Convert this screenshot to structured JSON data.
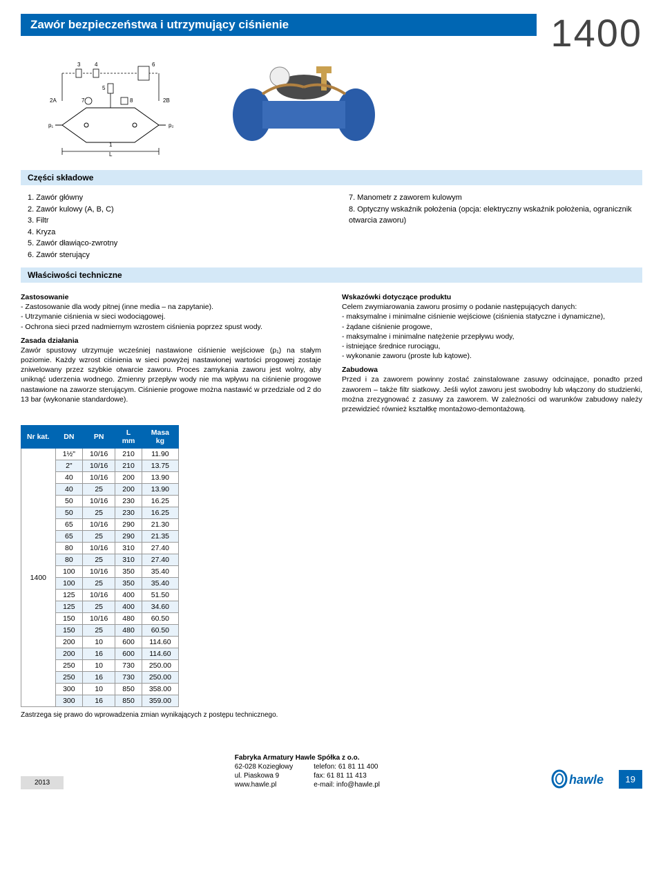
{
  "header": {
    "title": "Zawór bezpieczeństwa i utrzymujący ciśnienie",
    "model": "1400"
  },
  "diagram": {
    "labels": {
      "n3": "3",
      "n4": "4",
      "n5": "5",
      "n6": "6",
      "n7": "7",
      "n8": "8",
      "n1": "1",
      "n2A": "2A",
      "n2B": "2B",
      "p1": "p₁",
      "p2": "p₂",
      "L": "L"
    }
  },
  "parts_header": "Części składowe",
  "parts_left": [
    "1.  Zawór główny",
    "2.  Zawór kulowy (A, B, C)",
    "3.  Filtr",
    "4.  Kryza",
    "5.  Zawór dławiąco-zwrotny",
    "6.  Zawór sterujący"
  ],
  "parts_right": [
    "7.  Manometr z zaworem kulowym",
    "8.  Optyczny wskaźnik położenia (opcja: elektryczny wskaźnik położenia, ogranicznik otwarcia zaworu)"
  ],
  "tech_header": "Właściwości techniczne",
  "left_text": {
    "h1": "Zastosowanie",
    "b1": "- Zastosowanie dla wody pitnej (inne media – na zapytanie).",
    "b2": "- Utrzymanie ciśnienia w sieci wodociągowej.",
    "b3": "- Ochrona sieci przed nadmiernym wzrostem ciśnienia poprzez spust wody.",
    "h2": "Zasada działania",
    "p2": "Zawór spustowy utrzymuje wcześniej nastawione ciśnienie wejściowe (p₁) na stałym poziomie. Każdy wzrost ciśnienia w sieci powyżej nastawionej wartości progowej zostaje zniwelowany przez szybkie otwarcie zaworu. Proces zamykania zaworu jest wolny, aby uniknąć uderzenia wodnego. Zmienny przepływ wody nie ma wpływu na ciśnienie progowe nastawione na zaworze sterującym. Ciśnienie progowe można nastawić w przedziale od 2 do 13 bar (wykonanie standardowe)."
  },
  "right_text": {
    "h1": "Wskazówki dotyczące produktu",
    "p1": "Celem zwymiarowania zaworu prosimy o podanie następujących danych:",
    "b1": "- maksymalne i minimalne ciśnienie wejściowe (ciśnienia statyczne i dynamiczne),",
    "b2": "- żądane ciśnienie progowe,",
    "b3": "- maksymalne i minimalne natężenie przepływu wody,",
    "b4": "- istniejące średnice rurociągu,",
    "b5": "- wykonanie zaworu (proste lub kątowe).",
    "h2": "Zabudowa",
    "p2": "Przed i za zaworem powinny zostać zainstalowane zasuwy odcinające, ponadto przed zaworem – także filtr siatkowy. Jeśli wylot zaworu jest swobodny lub włączony do studzienki, można zrezygnować z zasuwy za zaworem. W zależności od warunków zabudowy należy przewidzieć również kształtkę montażowo-demontażową."
  },
  "table": {
    "headers": [
      "Nr kat.",
      "DN",
      "PN",
      "L mm",
      "Masa kg"
    ],
    "nrkat": "1400",
    "rows": [
      [
        "1½\"",
        "10/16",
        "210",
        "11.90"
      ],
      [
        "2\"",
        "10/16",
        "210",
        "13.75"
      ],
      [
        "40",
        "10/16",
        "200",
        "13.90"
      ],
      [
        "40",
        "25",
        "200",
        "13.90"
      ],
      [
        "50",
        "10/16",
        "230",
        "16.25"
      ],
      [
        "50",
        "25",
        "230",
        "16.25"
      ],
      [
        "65",
        "10/16",
        "290",
        "21.30"
      ],
      [
        "65",
        "25",
        "290",
        "21.35"
      ],
      [
        "80",
        "10/16",
        "310",
        "27.40"
      ],
      [
        "80",
        "25",
        "310",
        "27.40"
      ],
      [
        "100",
        "10/16",
        "350",
        "35.40"
      ],
      [
        "100",
        "25",
        "350",
        "35.40"
      ],
      [
        "125",
        "10/16",
        "400",
        "51.50"
      ],
      [
        "125",
        "25",
        "400",
        "34.60"
      ],
      [
        "150",
        "10/16",
        "480",
        "60.50"
      ],
      [
        "150",
        "25",
        "480",
        "60.50"
      ],
      [
        "200",
        "10",
        "600",
        "114.60"
      ],
      [
        "200",
        "16",
        "600",
        "114.60"
      ],
      [
        "250",
        "10",
        "730",
        "250.00"
      ],
      [
        "250",
        "16",
        "730",
        "250.00"
      ],
      [
        "300",
        "10",
        "850",
        "358.00"
      ],
      [
        "300",
        "16",
        "850",
        "359.00"
      ]
    ],
    "shaded_color": "#e8f2fa",
    "header_bg": "#0066b3"
  },
  "footnote": "Zastrzega się prawo do wprowadzenia zmian wynikających z postępu technicznego.",
  "footer": {
    "year": "2013",
    "company": "Fabryka Armatury Hawle Spółka z o.o.",
    "addr1": "62-028 Koziegłowy",
    "addr2": "ul. Piaskowa 9",
    "addr3": "www.hawle.pl",
    "tel": "telefon: 61 81 11 400",
    "fax": "fax: 61 81 11 413",
    "email": "e-mail: info@hawle.pl",
    "logo": "hawle",
    "page": "19"
  }
}
